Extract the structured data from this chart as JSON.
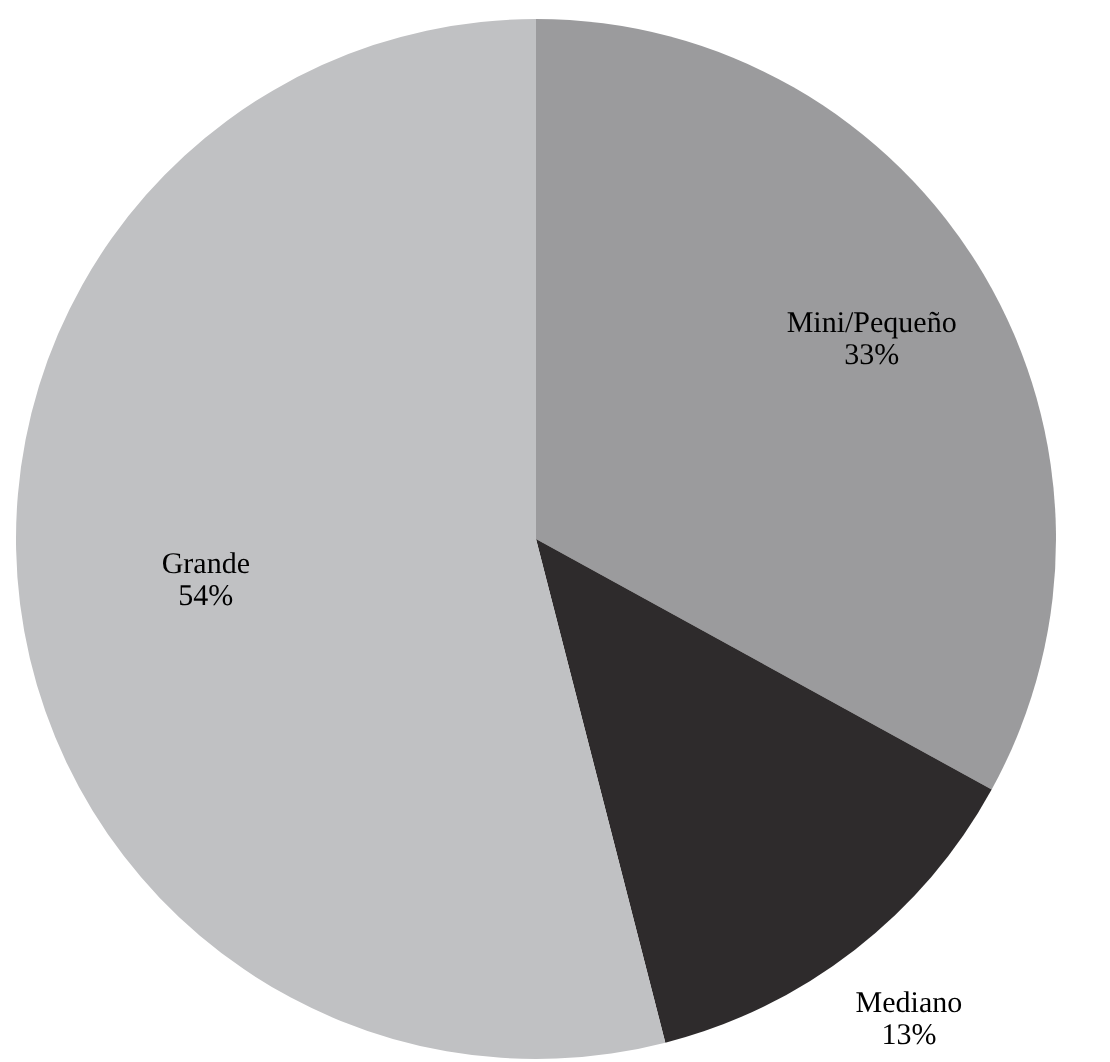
{
  "chart_data": {
    "type": "pie",
    "categories": [
      "Mini/Pequeño",
      "Mediano",
      "Grande"
    ],
    "values": [
      33,
      13,
      54
    ],
    "colors": [
      "#9b9b9d",
      "#2e2b2c",
      "#c0c1c3"
    ],
    "value_labels": [
      "33%",
      "13%",
      "54%"
    ]
  }
}
